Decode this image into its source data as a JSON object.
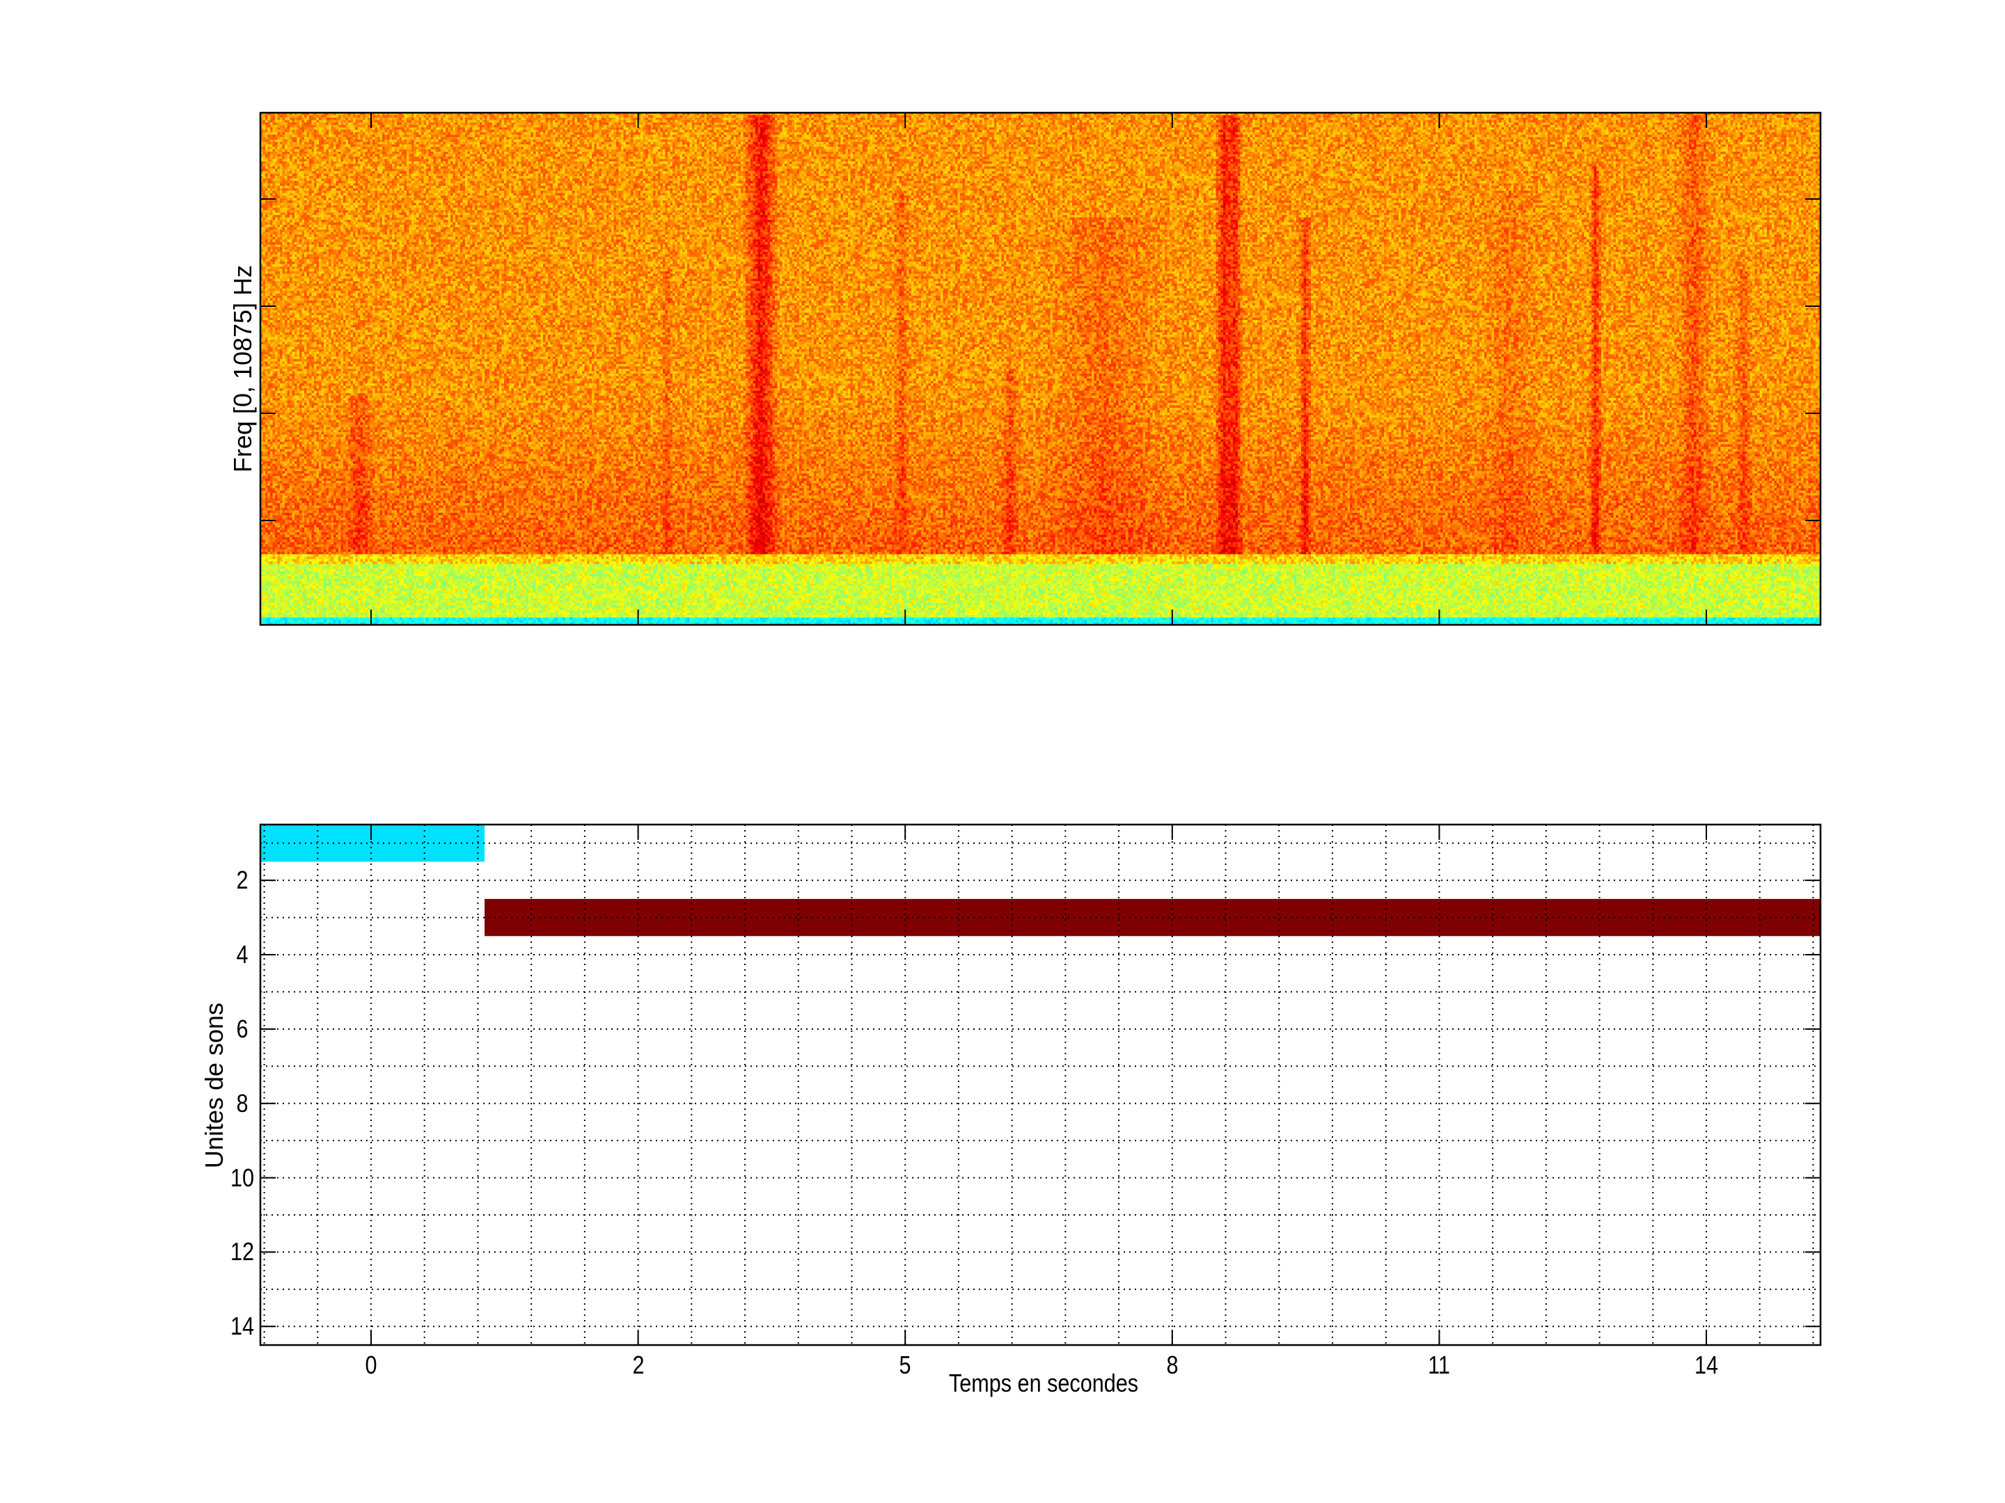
{
  "chart_data": [
    {
      "type": "heatmap",
      "subtype": "spectrogram",
      "title": "",
      "xlabel": "",
      "ylabel": "Freq [0, 10875] Hz",
      "colormap": "jet",
      "x_tick_labels": [],
      "y_tick_labels": []
    },
    {
      "type": "bar",
      "subtype": "horizontal-segments",
      "title": "",
      "xlabel": "Temps en secondes",
      "ylabel": "Unites de sons",
      "xticks": [
        "0",
        "2",
        "5",
        "8",
        "11",
        "14"
      ],
      "yticks": [
        "2",
        "4",
        "6",
        "8",
        "10",
        "12",
        "14"
      ],
      "ylim": [
        0.5,
        14.5
      ],
      "y_reversed": true,
      "xlim": [
        -0.83,
        15.3
      ],
      "grid": true,
      "segments": [
        {
          "unit": 1,
          "x_start": -0.83,
          "x_end": 0.85,
          "color": "#00E0FF"
        },
        {
          "unit": 3,
          "x_start": 0.85,
          "x_end": 15.3,
          "color": "#7F0000"
        }
      ]
    }
  ]
}
